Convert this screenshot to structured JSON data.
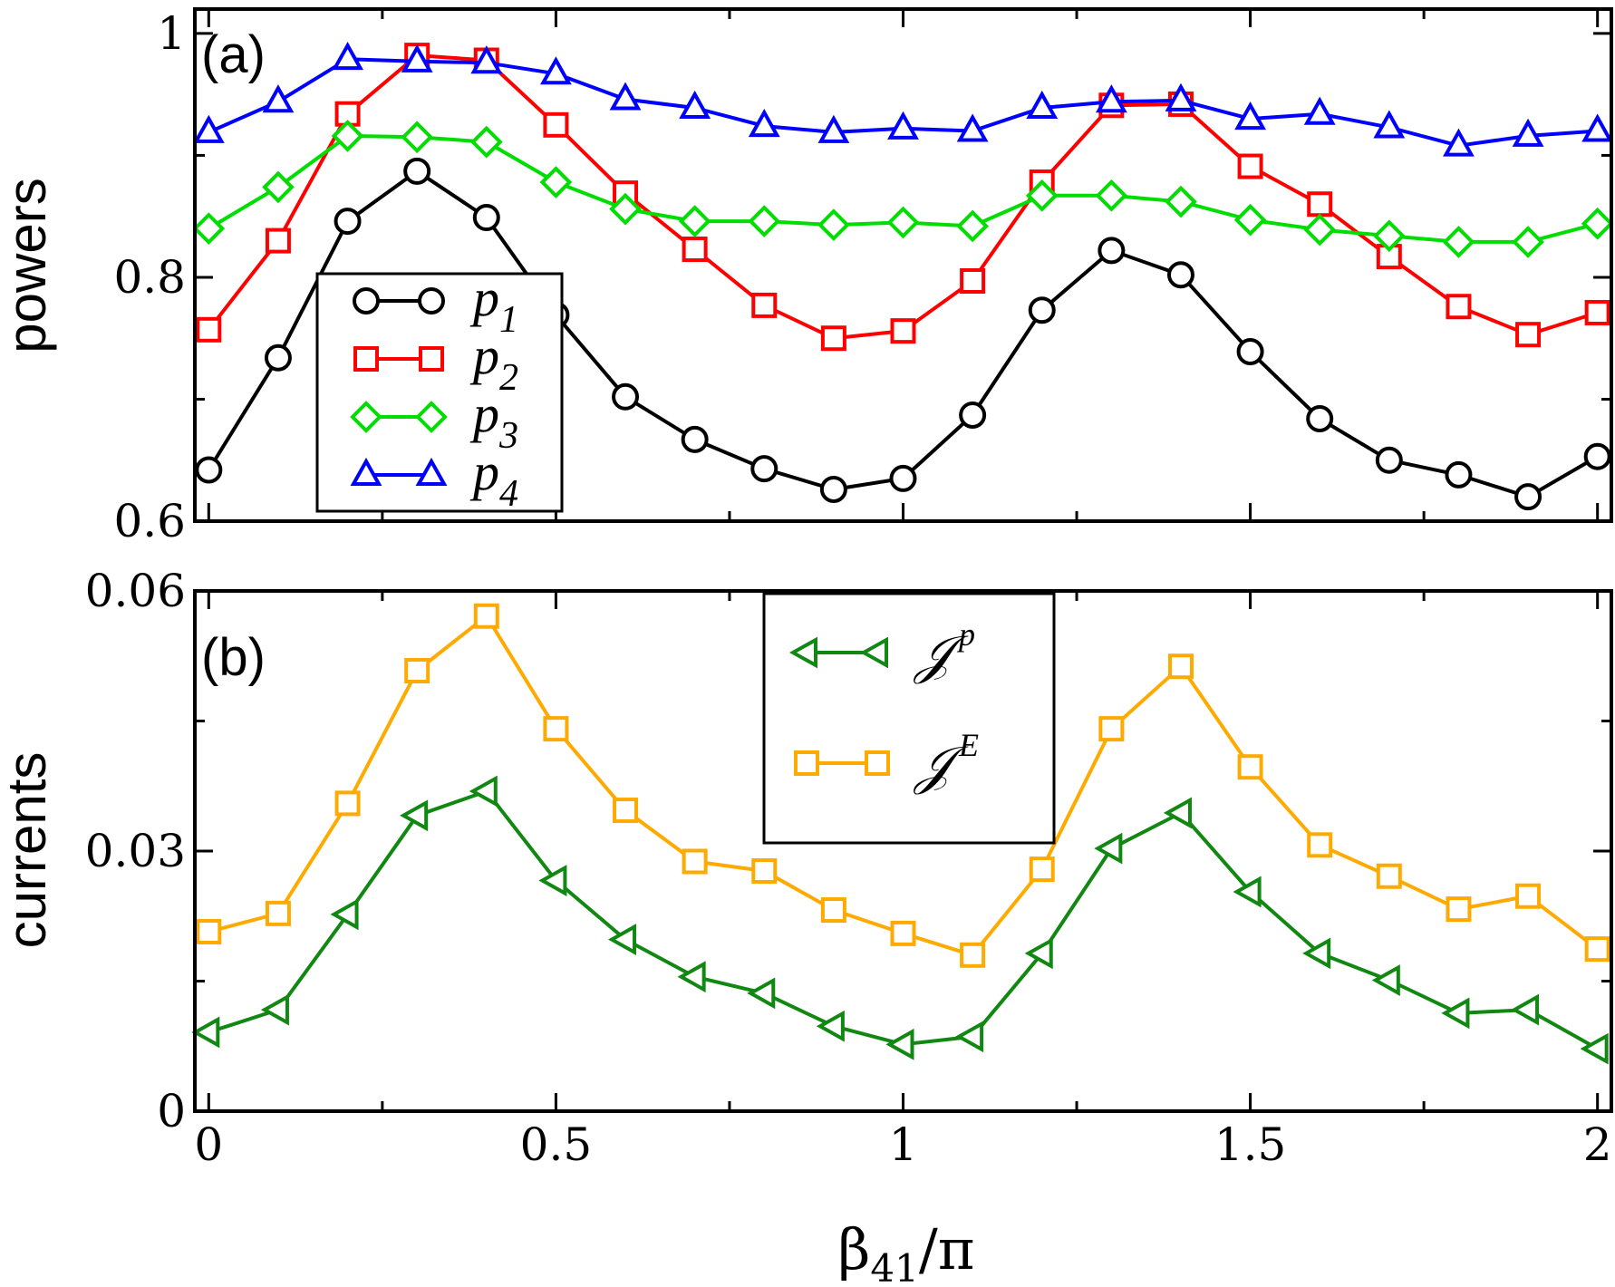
{
  "chart_data": [
    {
      "panel": "(a)",
      "type": "line",
      "ylabel": "powers",
      "xlabel": "",
      "xlim": [
        -0.02,
        2.02
      ],
      "ylim": [
        0.6,
        1.02
      ],
      "yticks": [
        0.6,
        0.8,
        1
      ],
      "ytick_labels": [
        "0.6",
        "0.8",
        "1"
      ],
      "x": [
        0,
        0.1,
        0.2,
        0.3,
        0.4,
        0.5,
        0.6,
        0.7,
        0.8,
        0.9,
        1.0,
        1.1,
        1.2,
        1.3,
        1.4,
        1.5,
        1.6,
        1.7,
        1.8,
        1.9,
        2.0
      ],
      "legend_position": "left",
      "series": [
        {
          "name": "p",
          "sub": "1",
          "color": "#000000",
          "marker": "circle",
          "values": [
            0.642,
            0.734,
            0.846,
            0.887,
            0.849,
            0.769,
            0.702,
            0.667,
            0.643,
            0.626,
            0.635,
            0.687,
            0.773,
            0.822,
            0.802,
            0.739,
            0.684,
            0.65,
            0.638,
            0.62,
            0.653
          ]
        },
        {
          "name": "p",
          "sub": "2",
          "color": "#ff0000",
          "marker": "square",
          "values": [
            0.757,
            0.83,
            0.934,
            0.982,
            0.978,
            0.925,
            0.869,
            0.823,
            0.777,
            0.75,
            0.756,
            0.797,
            0.878,
            0.941,
            0.942,
            0.891,
            0.86,
            0.817,
            0.776,
            0.753,
            0.771
          ]
        },
        {
          "name": "p",
          "sub": "3",
          "color": "#00dd00",
          "marker": "diamond",
          "values": [
            0.84,
            0.874,
            0.916,
            0.915,
            0.911,
            0.878,
            0.856,
            0.846,
            0.846,
            0.843,
            0.845,
            0.842,
            0.867,
            0.867,
            0.862,
            0.847,
            0.839,
            0.834,
            0.829,
            0.829,
            0.844
          ]
        },
        {
          "name": "p",
          "sub": "4",
          "color": "#0000ff",
          "marker": "triangle-up",
          "values": [
            0.919,
            0.944,
            0.979,
            0.977,
            0.976,
            0.967,
            0.946,
            0.939,
            0.924,
            0.919,
            0.922,
            0.92,
            0.939,
            0.944,
            0.945,
            0.93,
            0.934,
            0.923,
            0.908,
            0.916,
            0.92
          ]
        }
      ]
    },
    {
      "panel": "(b)",
      "type": "line",
      "ylabel": "currents",
      "xlabel": "β₄₁/π",
      "xlabel_main": "β",
      "xlabel_sub": "41",
      "xlabel_tail": "/π",
      "xlim": [
        -0.02,
        2.02
      ],
      "ylim": [
        0,
        0.06
      ],
      "yticks": [
        0,
        0.03,
        0.06
      ],
      "ytick_labels": [
        "0",
        "0.03",
        "0.06"
      ],
      "xticks": [
        0,
        0.5,
        1,
        1.5,
        2
      ],
      "xtick_labels": [
        "0",
        "0.5",
        "1",
        "1.5",
        "2"
      ],
      "x": [
        0,
        0.1,
        0.2,
        0.3,
        0.4,
        0.5,
        0.6,
        0.7,
        0.8,
        0.9,
        1.0,
        1.1,
        1.2,
        1.3,
        1.4,
        1.5,
        1.6,
        1.7,
        1.8,
        1.9,
        2.0
      ],
      "legend_position": "top-center",
      "series": [
        {
          "name": "𝒥",
          "sup": "p",
          "color": "#118811",
          "marker": "triangle-left",
          "values": [
            0.0091,
            0.0117,
            0.0227,
            0.0341,
            0.0369,
            0.0266,
            0.0198,
            0.0155,
            0.0136,
            0.0098,
            0.0077,
            0.0086,
            0.0182,
            0.0303,
            0.0344,
            0.0253,
            0.0182,
            0.0151,
            0.0113,
            0.0117,
            0.0072
          ]
        },
        {
          "name": "𝒥",
          "sup": "E",
          "color": "#ffaa00",
          "marker": "square",
          "values": [
            0.0207,
            0.0228,
            0.0355,
            0.0508,
            0.0571,
            0.0441,
            0.0347,
            0.0288,
            0.0277,
            0.0232,
            0.0205,
            0.018,
            0.0279,
            0.0441,
            0.0513,
            0.0397,
            0.0307,
            0.0271,
            0.0233,
            0.0248,
            0.0187
          ]
        }
      ]
    }
  ]
}
